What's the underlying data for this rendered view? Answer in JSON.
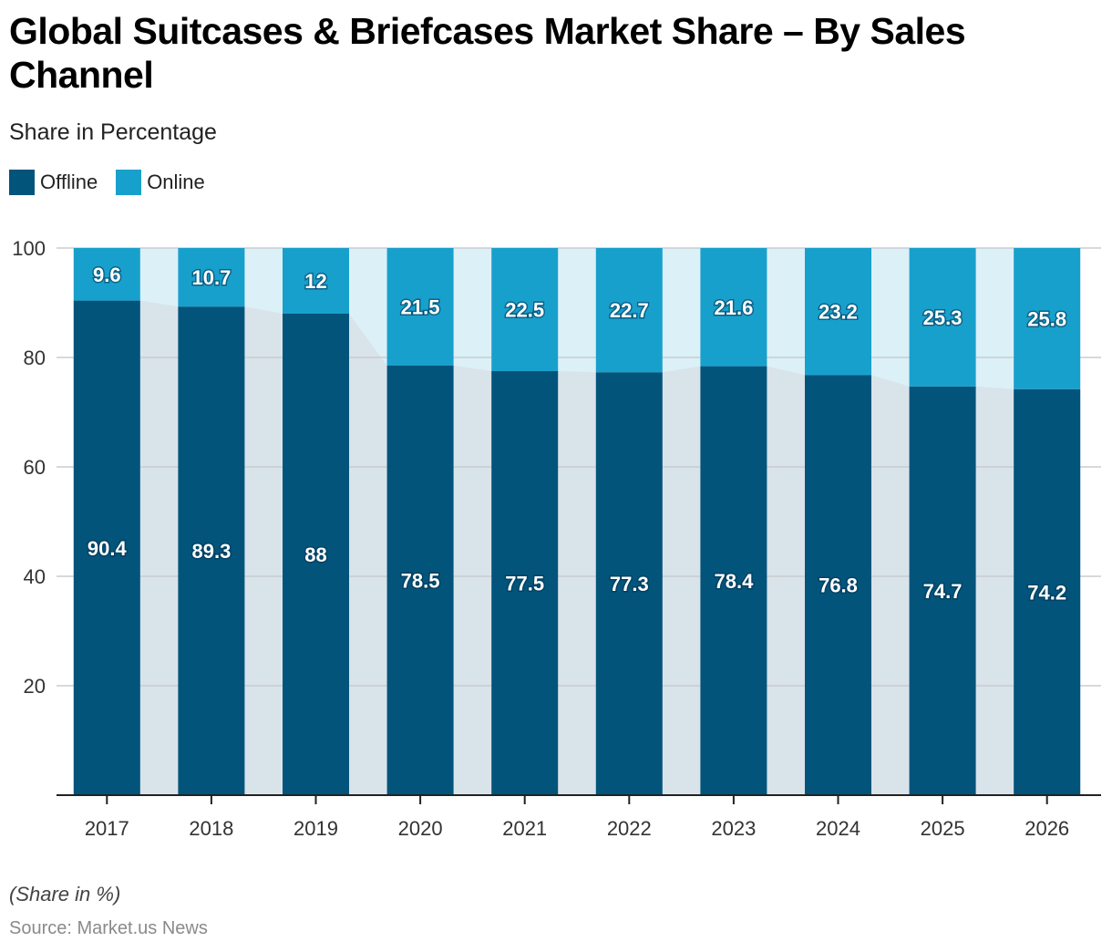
{
  "title": "Global Suitcases & Briefcases Market Share – By Sales Channel",
  "subtitle": "Share in Percentage",
  "note": "(Share in %)",
  "source": "Source: Market.us News",
  "colors": {
    "offline": "#02547b",
    "online": "#18a0cc",
    "offline_area": "#d9e3ea",
    "online_area": "#dcf0f8",
    "grid": "#c8cdd0",
    "axis": "#222222"
  },
  "legend": [
    {
      "label": "Offline",
      "color": "#02547b"
    },
    {
      "label": "Online",
      "color": "#18a0cc"
    }
  ],
  "chart_data": {
    "type": "bar",
    "stacked": true,
    "title": "Global Suitcases & Briefcases Market Share – By Sales Channel",
    "subtitle": "Share in Percentage",
    "xlabel": "",
    "ylabel": "",
    "categories": [
      "2017",
      "2018",
      "2019",
      "2020",
      "2021",
      "2022",
      "2023",
      "2024",
      "2025",
      "2026"
    ],
    "series": [
      {
        "name": "Offline",
        "values": [
          90.4,
          89.3,
          88,
          78.5,
          77.5,
          77.3,
          78.4,
          76.8,
          74.7,
          74.2
        ]
      },
      {
        "name": "Online",
        "values": [
          9.6,
          10.7,
          12,
          21.5,
          22.5,
          22.7,
          21.6,
          23.2,
          25.3,
          25.8
        ]
      }
    ],
    "ylim": [
      0,
      100
    ],
    "yticks": [
      20,
      40,
      60,
      80,
      100
    ],
    "grid": true,
    "legend_position": "top-left"
  }
}
